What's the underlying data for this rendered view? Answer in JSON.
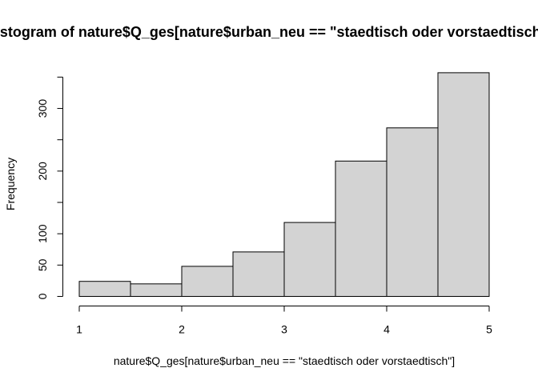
{
  "chart_data": {
    "type": "bar",
    "title": "Histogram of nature$Q_ges[nature$urban_neu == \"staedtisch oder vorstaedtisch\"]",
    "xlabel": "nature$Q_ges[nature$urban_neu == \"staedtisch oder vorstaedtisch\"]",
    "ylabel": "Frequency",
    "bins": [
      {
        "from": 1.0,
        "to": 1.5,
        "count": 24
      },
      {
        "from": 1.5,
        "to": 2.0,
        "count": 20
      },
      {
        "from": 2.0,
        "to": 2.5,
        "count": 48
      },
      {
        "from": 2.5,
        "to": 3.0,
        "count": 71
      },
      {
        "from": 3.0,
        "to": 3.5,
        "count": 118
      },
      {
        "from": 3.5,
        "to": 4.0,
        "count": 216
      },
      {
        "from": 4.0,
        "to": 4.5,
        "count": 269
      },
      {
        "from": 4.5,
        "to": 5.0,
        "count": 357
      }
    ],
    "xlim": [
      1,
      5
    ],
    "ylim": [
      0,
      357
    ],
    "x_ticks": [
      1,
      2,
      3,
      4,
      5
    ],
    "y_ticks": [
      0,
      50,
      100,
      200,
      300
    ],
    "y_minor_ticks": [
      150,
      250,
      350
    ],
    "grid": false,
    "legend": "none"
  }
}
